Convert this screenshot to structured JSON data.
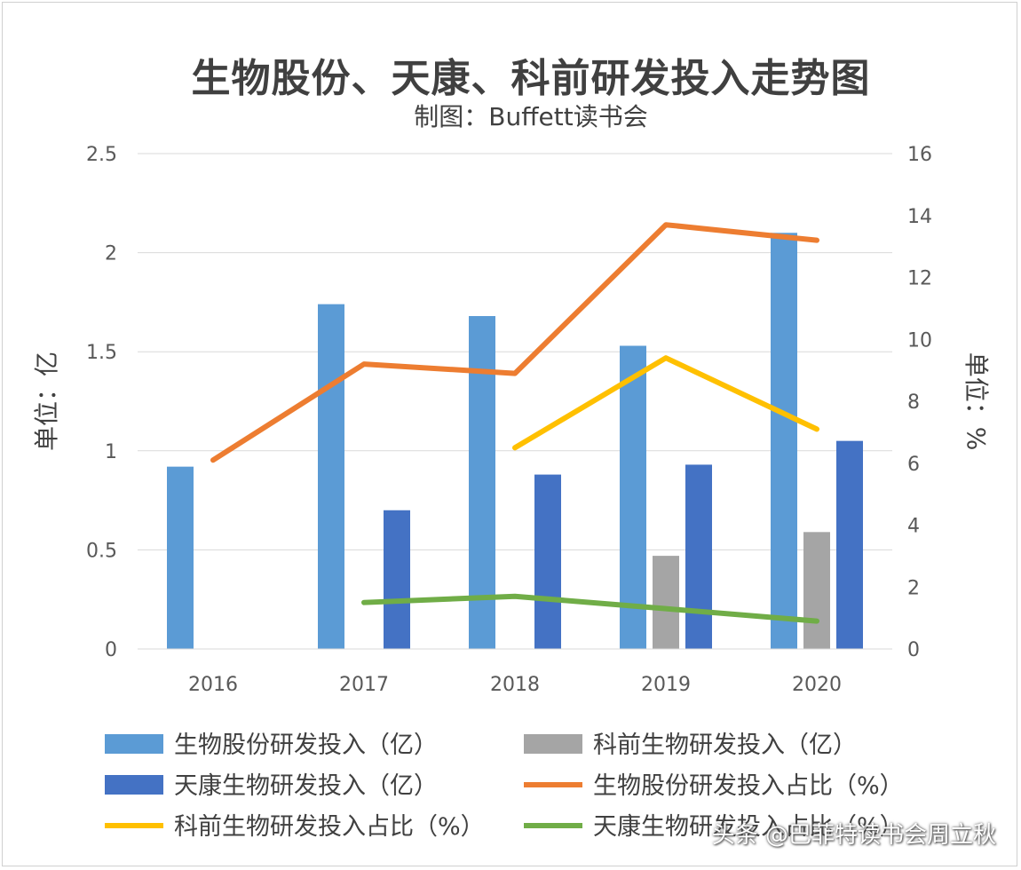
{
  "chart_data": {
    "type": "bar",
    "title": "生物股份、天康、科前研发投入走势图",
    "subtitle": "制图：Buffett读书会",
    "categories": [
      "2016",
      "2017",
      "2018",
      "2019",
      "2020"
    ],
    "y_left": {
      "label": "单位：亿",
      "range": [
        0,
        2.5
      ],
      "ticks": [
        "0",
        "0.5",
        "1",
        "1.5",
        "2",
        "2.5"
      ]
    },
    "y_right": {
      "label": "单位：%",
      "range": [
        0,
        16
      ],
      "ticks": [
        "0",
        "2",
        "4",
        "6",
        "8",
        "10",
        "12",
        "14",
        "16"
      ]
    },
    "grid": true,
    "legend_position": "bottom",
    "bar_series": [
      {
        "name": "生物股份研发投入（亿）",
        "color": "#5b9bd5",
        "values": [
          0.92,
          1.74,
          1.68,
          1.53,
          2.1
        ]
      },
      {
        "name": "科前生物研发投入（亿）",
        "color": "#a5a5a5",
        "values": [
          null,
          null,
          null,
          0.47,
          0.59
        ]
      },
      {
        "name": "天康生物研发投入（亿）",
        "color": "#4472c4",
        "values": [
          null,
          0.7,
          0.88,
          0.93,
          1.05
        ]
      }
    ],
    "line_series": [
      {
        "name": "生物股份研发投入占比（%）",
        "color": "#ed7d31",
        "values": [
          6.1,
          9.2,
          8.9,
          13.7,
          13.2
        ]
      },
      {
        "name": "科前生物研发投入占比（%）",
        "color": "#ffc000",
        "values": [
          null,
          null,
          6.5,
          9.4,
          7.1
        ]
      },
      {
        "name": "天康生物研发投入占比（%）",
        "color": "#70ad47",
        "values": [
          null,
          1.5,
          1.7,
          1.3,
          0.9
        ]
      }
    ]
  },
  "watermark": "头条 @巴菲特读书会周立秋"
}
